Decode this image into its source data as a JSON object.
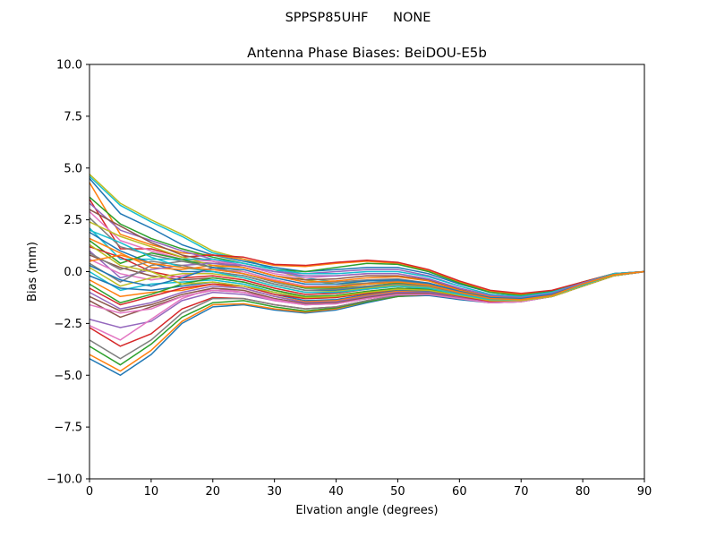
{
  "chart_data": {
    "type": "line",
    "suptitle": "SPPSP85UHF      NONE",
    "title": "Antenna Phase Biases: BeiDOU-E5b",
    "xlabel": "Elvation angle (degrees)",
    "ylabel": "Bias (mm)",
    "xlim": [
      0,
      90
    ],
    "ylim": [
      -10,
      10
    ],
    "xticks": [
      0,
      10,
      20,
      30,
      40,
      50,
      60,
      70,
      80,
      90
    ],
    "xtick_labels": [
      "0",
      "10",
      "20",
      "30",
      "40",
      "50",
      "60",
      "70",
      "80",
      "90"
    ],
    "yticks": [
      -10,
      -7.5,
      -5,
      -2.5,
      0,
      2.5,
      5,
      7.5,
      10
    ],
    "ytick_labels": [
      "−10.0",
      "−7.5",
      "−5.0",
      "−2.5",
      "0.0",
      "2.5",
      "5.0",
      "7.5",
      "10.0"
    ],
    "grid": false,
    "legend": "none",
    "x": [
      0,
      5,
      10,
      15,
      20,
      25,
      30,
      35,
      40,
      45,
      50,
      55,
      60,
      65,
      70,
      75,
      80,
      85,
      90
    ],
    "colors": [
      "#1f77b4",
      "#ff7f0e",
      "#2ca02c",
      "#d62728",
      "#9467bd",
      "#8c564b",
      "#e377c2",
      "#7f7f7f",
      "#bcbd22",
      "#17becf"
    ],
    "series": [
      {
        "values": [
          -4.2,
          -5.0,
          -4.0,
          -2.5,
          -1.7,
          -1.6,
          -1.85,
          -2.0,
          -1.85,
          -1.5,
          -1.2,
          -1.15,
          -1.35,
          -1.5,
          -1.45,
          -1.2,
          -0.7,
          -0.2,
          0
        ]
      },
      {
        "values": [
          -4.0,
          -4.8,
          -3.8,
          -2.4,
          -1.6,
          -1.55,
          -1.8,
          -1.95,
          -1.8,
          -1.45,
          -1.2,
          -1.1,
          -1.3,
          -1.45,
          -1.4,
          -1.2,
          -0.7,
          -0.2,
          0
        ]
      },
      {
        "values": [
          -3.6,
          -4.5,
          -3.5,
          -2.2,
          -1.5,
          -1.4,
          -1.7,
          -1.9,
          -1.75,
          -1.45,
          -1.2,
          -1.1,
          -1.3,
          -1.45,
          -1.4,
          -1.2,
          -0.7,
          -0.2,
          0
        ]
      },
      {
        "values": [
          -2.7,
          -3.6,
          -3.0,
          -1.8,
          -1.25,
          -1.3,
          -1.6,
          -1.8,
          -1.7,
          -1.4,
          -1.15,
          -1.1,
          -1.3,
          -1.45,
          -1.4,
          -1.2,
          -0.7,
          -0.2,
          0
        ]
      },
      {
        "values": [
          -2.3,
          -2.7,
          -2.4,
          -1.4,
          -1.0,
          -1.1,
          -1.4,
          -1.6,
          -1.55,
          -1.3,
          -1.1,
          -1.05,
          -1.25,
          -1.4,
          -1.35,
          -1.15,
          -0.7,
          -0.2,
          0
        ]
      },
      {
        "values": [
          -1.4,
          -2.2,
          -1.7,
          -1.2,
          -0.9,
          -1.0,
          -1.3,
          -1.55,
          -1.5,
          -1.25,
          -1.05,
          -1.05,
          -1.25,
          -1.4,
          -1.35,
          -1.15,
          -0.7,
          -0.2,
          0
        ]
      },
      {
        "values": [
          -2.6,
          -3.3,
          -2.3,
          -1.3,
          -0.8,
          -1.0,
          -1.4,
          -1.6,
          -1.5,
          -1.3,
          -1.1,
          -1.05,
          -1.25,
          -1.4,
          -1.35,
          -1.15,
          -0.7,
          -0.2,
          0
        ]
      },
      {
        "values": [
          -3.3,
          -4.2,
          -3.3,
          -2.0,
          -1.3,
          -1.3,
          -1.6,
          -1.8,
          -1.7,
          -1.4,
          -1.15,
          -1.1,
          -1.3,
          -1.45,
          -1.4,
          -1.2,
          -0.7,
          -0.2,
          0
        ]
      },
      {
        "values": [
          4.7,
          3.3,
          2.5,
          1.8,
          1.0,
          0.6,
          0.1,
          -0.4,
          -0.6,
          -0.55,
          -0.5,
          -0.7,
          -1.0,
          -1.3,
          -1.35,
          -1.1,
          -0.6,
          -0.15,
          0
        ]
      },
      {
        "values": [
          4.6,
          3.2,
          2.4,
          1.7,
          0.9,
          0.6,
          0.1,
          -0.3,
          -0.5,
          -0.45,
          -0.45,
          -0.65,
          -1.0,
          -1.3,
          -1.35,
          -1.1,
          -0.6,
          -0.15,
          0
        ]
      },
      {
        "values": [
          4.5,
          2.8,
          2.1,
          1.3,
          0.8,
          0.5,
          0.2,
          0.0,
          0.1,
          0.2,
          0.2,
          -0.1,
          -0.6,
          -1.0,
          -1.15,
          -1.0,
          -0.55,
          -0.1,
          0
        ]
      },
      {
        "values": [
          4.3,
          1.8,
          1.3,
          0.9,
          0.8,
          0.6,
          0.3,
          0.25,
          0.4,
          0.5,
          0.4,
          0.05,
          -0.5,
          -0.95,
          -1.1,
          -0.95,
          -0.5,
          -0.1,
          0
        ]
      },
      {
        "values": [
          3.6,
          2.3,
          1.6,
          1.1,
          0.7,
          0.4,
          0.1,
          0.0,
          0.2,
          0.4,
          0.35,
          0.0,
          -0.55,
          -1.0,
          -1.15,
          -0.95,
          -0.5,
          -0.1,
          0
        ]
      },
      {
        "values": [
          3.5,
          1.1,
          1.1,
          0.7,
          0.8,
          0.7,
          0.35,
          0.3,
          0.45,
          0.55,
          0.45,
          0.1,
          -0.45,
          -0.9,
          -1.05,
          -0.9,
          -0.5,
          -0.1,
          0
        ]
      },
      {
        "values": [
          3.3,
          2.0,
          1.5,
          1.0,
          0.6,
          0.3,
          0.0,
          -0.1,
          0.0,
          0.1,
          0.1,
          -0.2,
          -0.7,
          -1.1,
          -1.2,
          -1.0,
          -0.55,
          -0.1,
          0
        ]
      },
      {
        "values": [
          3.0,
          2.2,
          1.4,
          0.8,
          0.5,
          0.2,
          -0.2,
          -0.4,
          -0.35,
          -0.2,
          -0.2,
          -0.4,
          -0.85,
          -1.2,
          -1.3,
          -1.1,
          -0.6,
          -0.15,
          0
        ]
      },
      {
        "values": [
          2.9,
          1.5,
          1.0,
          0.6,
          0.5,
          0.3,
          -0.1,
          -0.3,
          -0.2,
          -0.1,
          -0.1,
          -0.35,
          -0.8,
          -1.15,
          -1.25,
          -1.05,
          -0.55,
          -0.15,
          0
        ]
      },
      {
        "values": [
          2.6,
          1.2,
          0.8,
          0.5,
          0.4,
          0.2,
          -0.2,
          -0.5,
          -0.5,
          -0.4,
          -0.35,
          -0.55,
          -0.95,
          -1.25,
          -1.3,
          -1.1,
          -0.6,
          -0.15,
          0
        ]
      },
      {
        "values": [
          2.4,
          1.7,
          1.2,
          0.7,
          0.3,
          0.0,
          -0.4,
          -0.7,
          -0.7,
          -0.6,
          -0.5,
          -0.65,
          -1.0,
          -1.3,
          -1.35,
          -1.15,
          -0.65,
          -0.15,
          0
        ]
      },
      {
        "values": [
          2.1,
          0.6,
          0.6,
          0.6,
          0.6,
          0.4,
          0.1,
          -0.1,
          -0.1,
          0.0,
          0.0,
          -0.25,
          -0.7,
          -1.1,
          -1.2,
          -1.0,
          -0.55,
          -0.1,
          0
        ]
      },
      {
        "values": [
          1.9,
          1.0,
          0.4,
          0.0,
          0.0,
          -0.2,
          -0.6,
          -0.9,
          -0.9,
          -0.75,
          -0.6,
          -0.7,
          -1.05,
          -1.35,
          -1.35,
          -1.15,
          -0.65,
          -0.15,
          0
        ]
      },
      {
        "values": [
          1.6,
          0.9,
          0.2,
          0.1,
          0.3,
          0.2,
          -0.2,
          -0.5,
          -0.45,
          -0.3,
          -0.25,
          -0.45,
          -0.9,
          -1.2,
          -1.3,
          -1.1,
          -0.6,
          -0.15,
          0
        ]
      },
      {
        "values": [
          1.5,
          0.4,
          0.9,
          0.6,
          0.2,
          -0.1,
          -0.5,
          -0.8,
          -0.8,
          -0.7,
          -0.55,
          -0.7,
          -1.05,
          -1.35,
          -1.35,
          -1.15,
          -0.65,
          -0.15,
          0
        ]
      },
      {
        "values": [
          1.2,
          0.7,
          0.0,
          -0.3,
          -0.2,
          -0.4,
          -0.8,
          -1.1,
          -1.05,
          -0.85,
          -0.7,
          -0.8,
          -1.1,
          -1.4,
          -1.4,
          -1.2,
          -0.65,
          -0.15,
          0
        ]
      },
      {
        "values": [
          1.0,
          -0.3,
          0.1,
          0.3,
          0.4,
          0.3,
          0.0,
          -0.2,
          -0.2,
          -0.1,
          -0.1,
          -0.35,
          -0.8,
          -1.15,
          -1.25,
          -1.05,
          -0.55,
          -0.15,
          0
        ]
      },
      {
        "values": [
          0.8,
          0.2,
          -0.2,
          -0.4,
          -0.3,
          -0.5,
          -0.9,
          -1.2,
          -1.15,
          -0.95,
          -0.8,
          -0.85,
          -1.15,
          -1.4,
          -1.4,
          -1.2,
          -0.65,
          -0.15,
          0
        ]
      },
      {
        "values": [
          0.6,
          -0.1,
          -0.4,
          -0.2,
          0.1,
          0.0,
          -0.4,
          -0.7,
          -0.7,
          -0.55,
          -0.45,
          -0.6,
          -1.0,
          -1.3,
          -1.35,
          -1.15,
          -0.6,
          -0.15,
          0
        ]
      },
      {
        "values": [
          0.4,
          -0.5,
          0.3,
          0.5,
          0.2,
          -0.1,
          -0.5,
          -0.75,
          -0.7,
          -0.55,
          -0.45,
          -0.6,
          -1.0,
          -1.3,
          -1.35,
          -1.15,
          -0.6,
          -0.15,
          0
        ]
      },
      {
        "values": [
          0.2,
          -0.7,
          -0.3,
          -0.1,
          -0.1,
          -0.3,
          -0.7,
          -1.0,
          -0.95,
          -0.8,
          -0.65,
          -0.75,
          -1.1,
          -1.35,
          -1.4,
          -1.15,
          -0.65,
          -0.15,
          0
        ]
      },
      {
        "values": [
          0.0,
          -0.9,
          -0.6,
          -0.5,
          -0.4,
          -0.6,
          -1.0,
          -1.3,
          -1.25,
          -1.0,
          -0.85,
          -0.9,
          -1.2,
          -1.45,
          -1.4,
          -1.2,
          -0.7,
          -0.2,
          0
        ]
      },
      {
        "values": [
          -0.2,
          -0.8,
          -0.9,
          -0.7,
          -0.5,
          -0.7,
          -1.1,
          -1.4,
          -1.35,
          -1.1,
          -0.9,
          -0.95,
          -1.2,
          -1.45,
          -1.4,
          -1.2,
          -0.7,
          -0.2,
          0
        ]
      },
      {
        "values": [
          -0.4,
          -1.2,
          -1.0,
          -0.9,
          -0.6,
          -0.8,
          -1.2,
          -1.45,
          -1.4,
          -1.15,
          -0.95,
          -1.0,
          -1.25,
          -1.45,
          -1.4,
          -1.2,
          -0.7,
          -0.2,
          0
        ]
      },
      {
        "values": [
          -0.6,
          -1.5,
          -1.1,
          -0.6,
          -0.3,
          -0.5,
          -0.9,
          -1.2,
          -1.15,
          -0.95,
          -0.8,
          -0.85,
          -1.15,
          -1.4,
          -1.4,
          -1.2,
          -0.65,
          -0.15,
          0
        ]
      },
      {
        "values": [
          -0.8,
          -1.6,
          -1.2,
          -0.8,
          -0.6,
          -0.7,
          -1.1,
          -1.3,
          -1.25,
          -1.05,
          -0.85,
          -0.9,
          -1.2,
          -1.45,
          -1.4,
          -1.2,
          -0.7,
          -0.2,
          0
        ]
      },
      {
        "values": [
          -1.0,
          -1.8,
          -1.5,
          -1.0,
          -0.7,
          -0.8,
          -1.2,
          -1.5,
          -1.45,
          -1.2,
          -1.0,
          -1.0,
          -1.25,
          -1.5,
          -1.45,
          -1.2,
          -0.7,
          -0.2,
          0
        ]
      },
      {
        "values": [
          -1.2,
          -1.9,
          -1.6,
          -1.1,
          -0.8,
          -0.9,
          -1.3,
          -1.55,
          -1.5,
          -1.25,
          -1.05,
          -1.05,
          -1.3,
          -1.5,
          -1.45,
          -1.2,
          -0.7,
          -0.2,
          0
        ]
      },
      {
        "values": [
          -1.6,
          -2.0,
          -1.8,
          -1.2,
          -0.9,
          -1.0,
          -1.35,
          -1.6,
          -1.55,
          -1.3,
          -1.1,
          -1.1,
          -1.3,
          -1.5,
          -1.45,
          -1.2,
          -0.7,
          -0.2,
          0
        ]
      },
      {
        "values": [
          0.9,
          0.1,
          0.5,
          0.3,
          0.0,
          -0.2,
          -0.6,
          -0.9,
          -0.85,
          -0.7,
          -0.6,
          -0.7,
          -1.05,
          -1.35,
          -1.35,
          -1.15,
          -0.65,
          -0.15,
          0
        ]
      },
      {
        "values": [
          1.3,
          0.3,
          0.0,
          -0.6,
          -0.5,
          -0.7,
          -1.0,
          -1.25,
          -1.2,
          -1.0,
          -0.85,
          -0.9,
          -1.15,
          -1.4,
          -1.4,
          -1.2,
          -0.7,
          -0.2,
          0
        ]
      },
      {
        "values": [
          2.0,
          1.4,
          0.7,
          0.2,
          0.0,
          -0.3,
          -0.7,
          -1.0,
          -1.0,
          -0.85,
          -0.7,
          -0.8,
          -1.1,
          -1.35,
          -1.35,
          -1.15,
          -0.65,
          -0.15,
          0
        ]
      },
      {
        "values": [
          0.3,
          -0.4,
          -0.7,
          -0.3,
          0.2,
          0.1,
          -0.3,
          -0.6,
          -0.6,
          -0.45,
          -0.4,
          -0.55,
          -0.95,
          -1.25,
          -1.3,
          -1.1,
          -0.6,
          -0.15,
          0
        ]
      },
      {
        "values": [
          0.5,
          0.8,
          0.4,
          0.2,
          0.1,
          -0.1,
          -0.45,
          -0.75,
          -0.75,
          -0.6,
          -0.5,
          -0.65,
          -1.0,
          -1.3,
          -1.35,
          -1.15,
          -0.6,
          -0.15,
          0
        ]
      }
    ]
  }
}
